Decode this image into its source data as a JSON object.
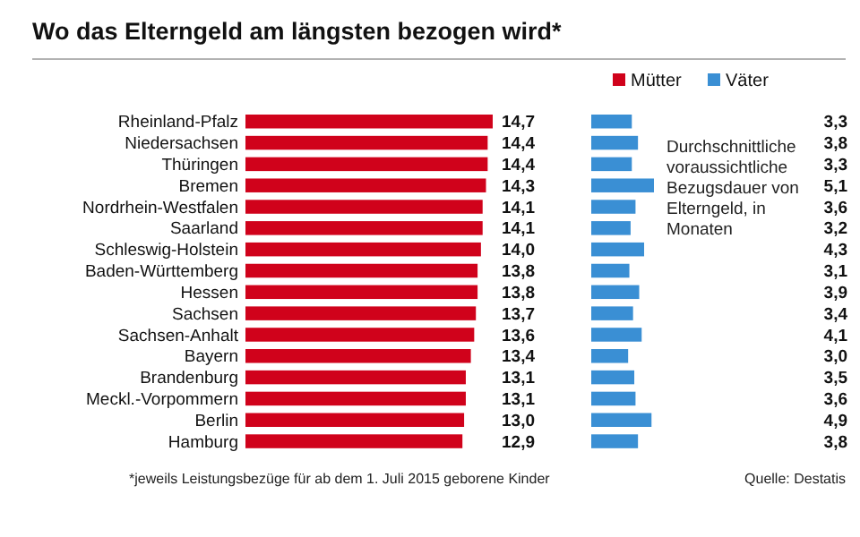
{
  "chart_data": [
    {
      "type": "bar",
      "orientation": "horizontal",
      "title": "Wo das Elterngeld am längsten bezogen wird*",
      "categories": [
        "Rheinland-Pfalz",
        "Niedersachsen",
        "Thüringen",
        "Bremen",
        "Nordrhein-Westfalen",
        "Saarland",
        "Schleswig-Holstein",
        "Baden-Württemberg",
        "Hessen",
        "Sachsen",
        "Sachsen-Anhalt",
        "Bayern",
        "Brandenburg",
        "Meckl.-Vorpommern",
        "Berlin",
        "Hamburg"
      ],
      "series": [
        {
          "name": "Mütter",
          "color": "#d0021b",
          "values": [
            14.7,
            14.4,
            14.4,
            14.3,
            14.1,
            14.1,
            14.0,
            13.8,
            13.8,
            13.7,
            13.6,
            13.4,
            13.1,
            13.1,
            13.0,
            12.9
          ],
          "value_labels": [
            "14,7",
            "14,4",
            "14,4",
            "14,3",
            "14,1",
            "14,1",
            "14,0",
            "13,8",
            "13,8",
            "13,7",
            "13,6",
            "13,4",
            "13,1",
            "13,1",
            "13,0",
            "12,9"
          ]
        }
      ],
      "legend": "top right"
    },
    {
      "type": "bar",
      "orientation": "horizontal",
      "categories": [
        null,
        null,
        null,
        null,
        null,
        null,
        null,
        null,
        null,
        null,
        null,
        null,
        null,
        null,
        null,
        null
      ],
      "series": [
        {
          "name": "Väter",
          "color": "#3a8fd4",
          "values": [
            3.3,
            3.8,
            3.3,
            5.1,
            3.6,
            3.2,
            4.3,
            3.1,
            3.9,
            3.4,
            4.1,
            3.0,
            3.5,
            3.6,
            4.9,
            3.8
          ],
          "value_labels": [
            "3,3",
            "3,8",
            "3,3",
            "5,1",
            "3,6",
            "3,2",
            "4,3",
            "3,1",
            "3,9",
            "3,4",
            "4,1",
            "3,0",
            "3,5",
            "3,6",
            "4,9",
            "3,8"
          ]
        }
      ],
      "legend": "top right",
      "annotations": [
        "Durchschnittliche voraussichtliche Bezugsdauer von Elterngeld, in Monaten",
        "*jeweils Leistungsbezüge für ab dem 1. Juli 2015 geborene Kinder",
        "Quelle: Destatis"
      ]
    }
  ]
}
